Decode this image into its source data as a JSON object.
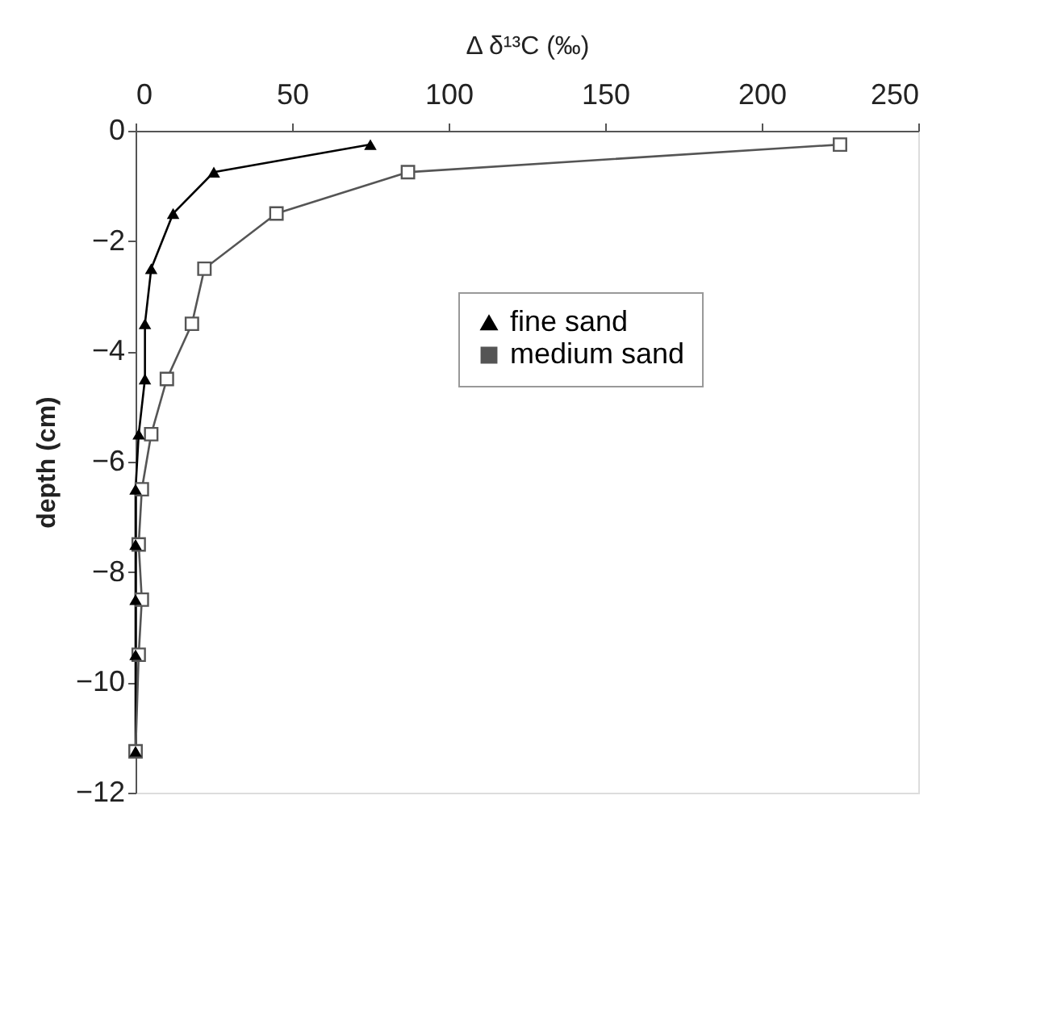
{
  "chart_data": {
    "type": "line",
    "xlabel": "Δ δ¹³C (‰)",
    "ylabel": "depth (cm)",
    "xlim": [
      0,
      250
    ],
    "xticks": [
      0,
      50,
      100,
      150,
      200,
      250
    ],
    "ylim": [
      -12,
      0
    ],
    "yticks": [
      -12,
      -10,
      -8,
      -6,
      -4,
      -2,
      0
    ],
    "grid": false,
    "legend": "right",
    "series": [
      {
        "name": "fine sand",
        "color": "#000000",
        "marker": "triangle",
        "x": [
          75,
          25,
          12,
          5,
          3,
          3,
          1,
          0,
          0,
          0,
          0,
          0
        ],
        "values": [
          -0.25,
          -0.75,
          -1.5,
          -2.5,
          -3.5,
          -4.5,
          -5.5,
          -6.5,
          -7.5,
          -8.5,
          -9.5,
          -11.25
        ]
      },
      {
        "name": "medium sand",
        "color": "#555555",
        "marker": "square",
        "x": [
          225,
          87,
          45,
          22,
          18,
          10,
          5,
          2,
          1,
          2,
          1,
          0
        ],
        "values": [
          -0.25,
          -0.75,
          -1.5,
          -2.5,
          -3.5,
          -4.5,
          -5.5,
          -6.5,
          -7.5,
          -8.5,
          -9.5,
          -11.25
        ]
      }
    ]
  }
}
